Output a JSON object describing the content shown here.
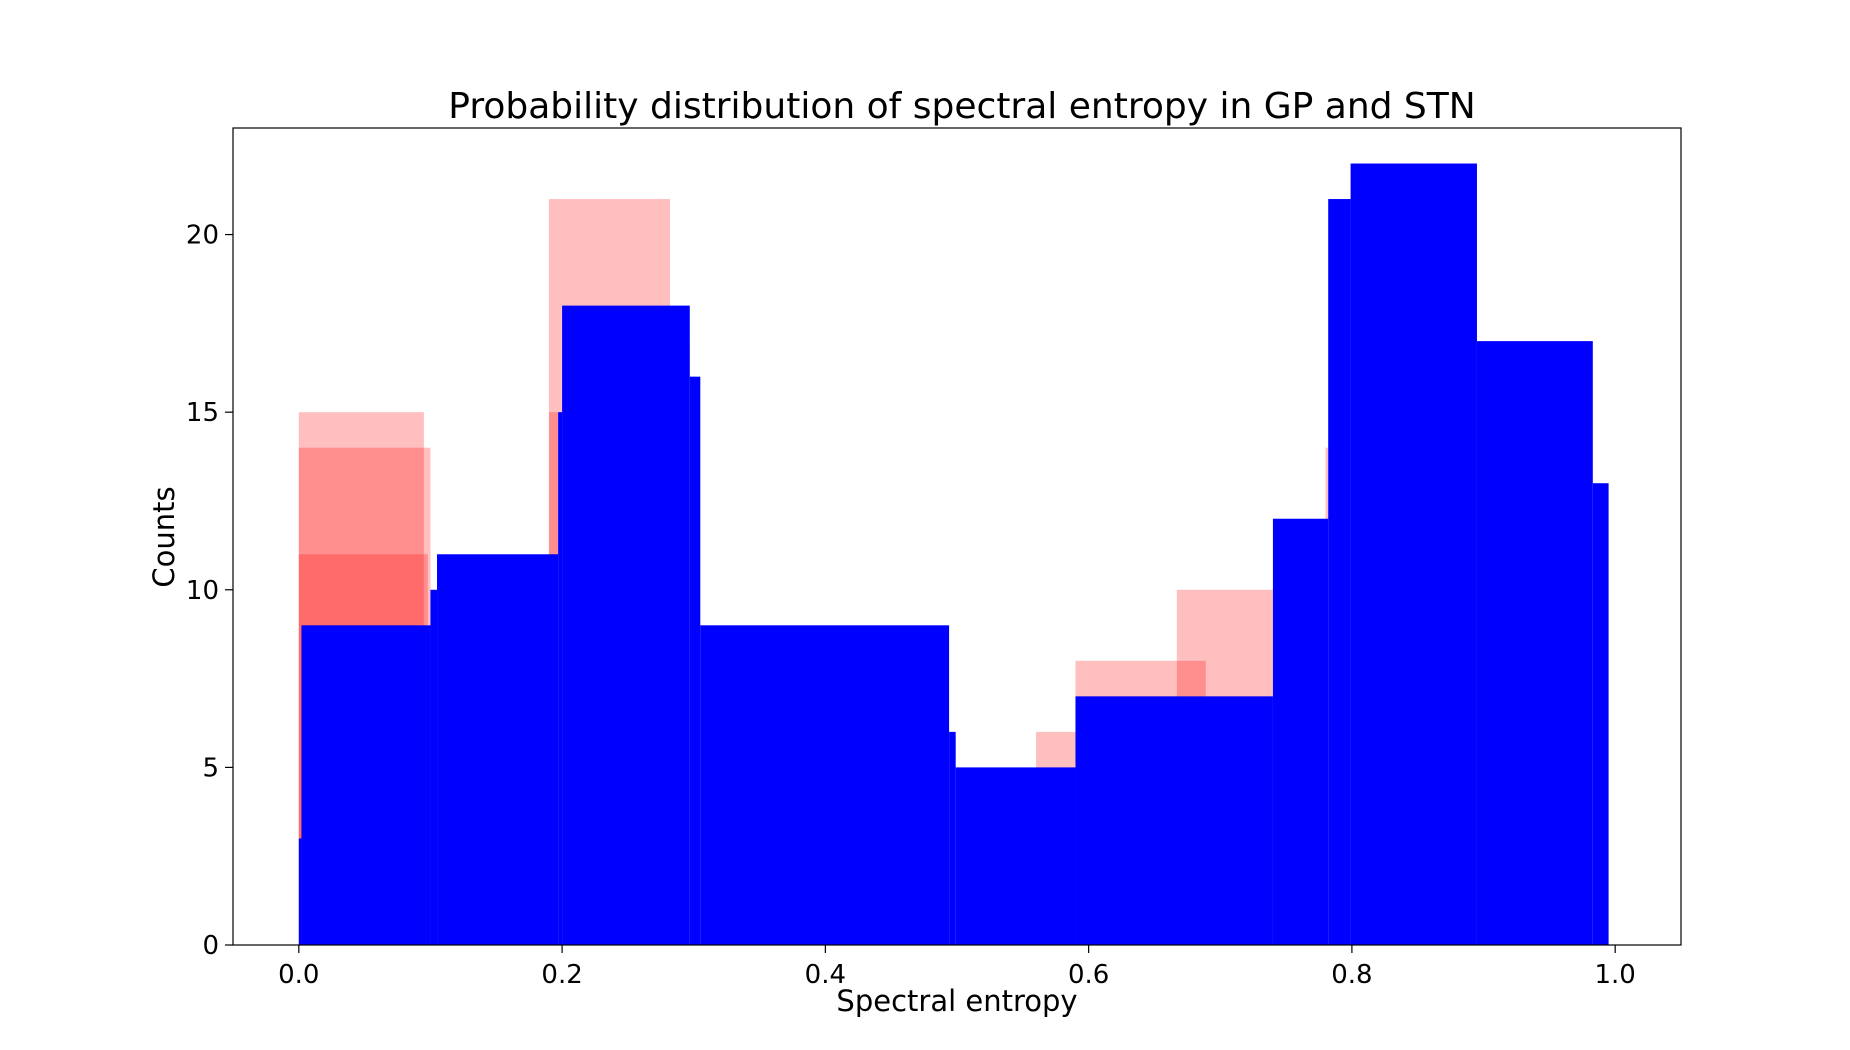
{
  "chart_data": {
    "type": "bar",
    "title": "Probability distribution of spectral entropy in GP and STN",
    "xlabel": "Spectral entropy",
    "ylabel": "Counts",
    "xlim": [
      -0.05,
      1.05
    ],
    "ylim": [
      0,
      23
    ],
    "x_ticks": [
      0.0,
      0.2,
      0.4,
      0.6,
      0.8,
      1.0
    ],
    "x_tick_labels": [
      "0.0",
      "0.2",
      "0.4",
      "0.6",
      "0.8",
      "1.0"
    ],
    "y_ticks": [
      0,
      5,
      10,
      15,
      20
    ],
    "y_tick_labels": [
      "0",
      "5",
      "10",
      "15",
      "20"
    ],
    "grid": false,
    "series": [
      {
        "color": "#ff0000",
        "opacity": 0.25,
        "bins": [
          {
            "x0": 0.0,
            "x1": 0.095,
            "count": 15
          },
          {
            "x0": 0.19,
            "x1": 0.282,
            "count": 21
          },
          {
            "x0": 0.282,
            "x1": 0.297,
            "count": 17
          },
          {
            "x0": 0.56,
            "x1": 0.59,
            "count": 6
          },
          {
            "x0": 0.59,
            "x1": 0.667,
            "count": 8
          },
          {
            "x0": 0.667,
            "x1": 0.74,
            "count": 10
          },
          {
            "x0": 0.78,
            "x1": 0.782,
            "count": 14
          }
        ]
      },
      {
        "color": "#ff0000",
        "opacity": 0.25,
        "bins": [
          {
            "x0": 0.0,
            "x1": 0.1,
            "count": 14
          },
          {
            "x0": 0.19,
            "x1": 0.197,
            "count": 15
          },
          {
            "x0": 0.667,
            "x1": 0.689,
            "count": 8
          }
        ]
      },
      {
        "color": "#ff0000",
        "opacity": 0.25,
        "bins": [
          {
            "x0": 0.0,
            "x1": 0.098,
            "count": 11
          }
        ]
      },
      {
        "color": "#0000ff",
        "opacity": 1.0,
        "bins": [
          {
            "x0": 0.0,
            "x1": 0.002,
            "count": 3
          },
          {
            "x0": 0.002,
            "x1": 0.1,
            "count": 9
          },
          {
            "x0": 0.1,
            "x1": 0.105,
            "count": 10
          },
          {
            "x0": 0.105,
            "x1": 0.197,
            "count": 11
          },
          {
            "x0": 0.197,
            "x1": 0.2,
            "count": 15
          },
          {
            "x0": 0.2,
            "x1": 0.297,
            "count": 18
          },
          {
            "x0": 0.297,
            "x1": 0.305,
            "count": 16
          },
          {
            "x0": 0.305,
            "x1": 0.494,
            "count": 9
          },
          {
            "x0": 0.494,
            "x1": 0.499,
            "count": 6
          },
          {
            "x0": 0.499,
            "x1": 0.59,
            "count": 5
          },
          {
            "x0": 0.59,
            "x1": 0.74,
            "count": 7
          },
          {
            "x0": 0.74,
            "x1": 0.782,
            "count": 12
          },
          {
            "x0": 0.782,
            "x1": 0.799,
            "count": 21
          },
          {
            "x0": 0.799,
            "x1": 0.895,
            "count": 22
          },
          {
            "x0": 0.895,
            "x1": 0.983,
            "count": 17
          },
          {
            "x0": 0.983,
            "x1": 0.995,
            "count": 13
          }
        ]
      }
    ]
  }
}
